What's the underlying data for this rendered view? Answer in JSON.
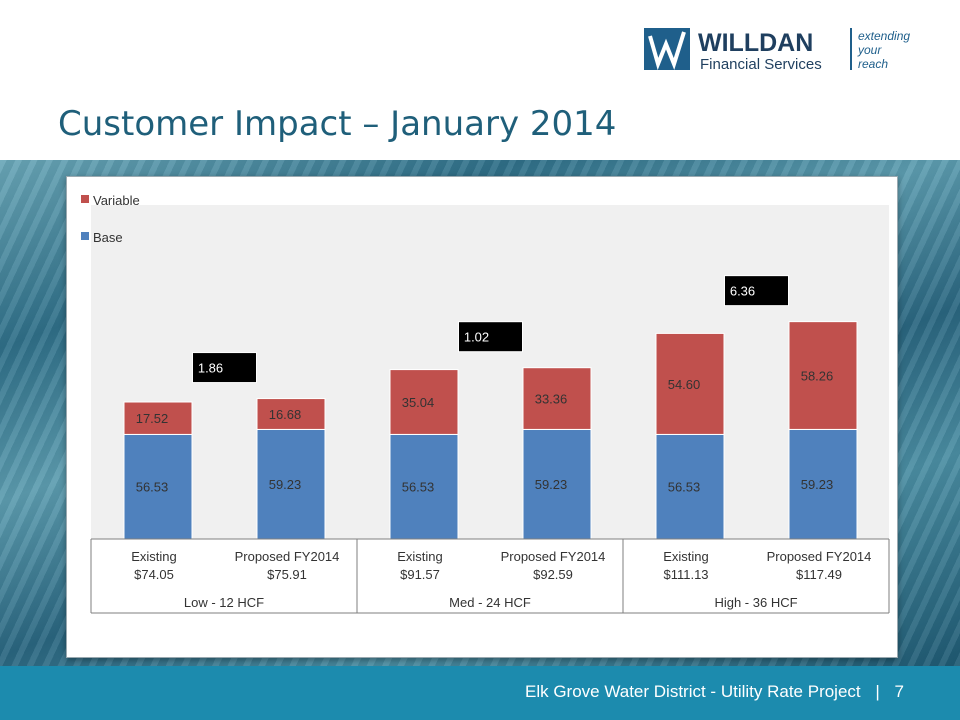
{
  "slide": {
    "title": "Customer Impact – January 2014",
    "footer": "Elk Grove Water District - Utility Rate Project",
    "page_number": "7",
    "footer_separator": "|"
  },
  "logo": {
    "name": "WILLDAN",
    "subtitle": "Financial Services",
    "tagline": "extending your reach"
  },
  "chart_data": {
    "type": "bar",
    "stacked": true,
    "grid": false,
    "legend_position": "top-left",
    "ylim": [
      0,
      125
    ],
    "categories": [
      {
        "label": "Existing",
        "total": "$74.05",
        "group": "Low - 12 HCF"
      },
      {
        "label": "Proposed FY2014",
        "total": "$75.91",
        "group": "Low - 12 HCF"
      },
      {
        "label": "Existing",
        "total": "$91.57",
        "group": "Med - 24 HCF"
      },
      {
        "label": "Proposed FY2014",
        "total": "$92.59",
        "group": "Med - 24 HCF"
      },
      {
        "label": "Existing",
        "total": "$111.13",
        "group": "High - 36 HCF"
      },
      {
        "label": "Proposed FY2014",
        "total": "$117.49",
        "group": "High - 36 HCF"
      }
    ],
    "groups": [
      "Low - 12 HCF",
      "Med - 24 HCF",
      "High - 36 HCF"
    ],
    "series": [
      {
        "name": "Base",
        "color": "#4f81bd",
        "values": [
          56.53,
          59.23,
          56.53,
          59.23,
          56.53,
          59.23
        ],
        "labels": [
          "56.53",
          "59.23",
          "56.53",
          "59.23",
          "56.53",
          "59.23"
        ]
      },
      {
        "name": "Variable",
        "color": "#c0504d",
        "values": [
          17.52,
          16.68,
          35.04,
          33.36,
          54.6,
          58.26
        ],
        "labels": [
          "17.52",
          "16.68",
          "35.04",
          "33.36",
          "54.60",
          "58.26"
        ]
      }
    ],
    "annotations": [
      {
        "group": "Low - 12 HCF",
        "text": "1.86"
      },
      {
        "group": "Med - 24 HCF",
        "text": "1.02"
      },
      {
        "group": "High - 36 HCF",
        "text": "6.36"
      }
    ]
  }
}
